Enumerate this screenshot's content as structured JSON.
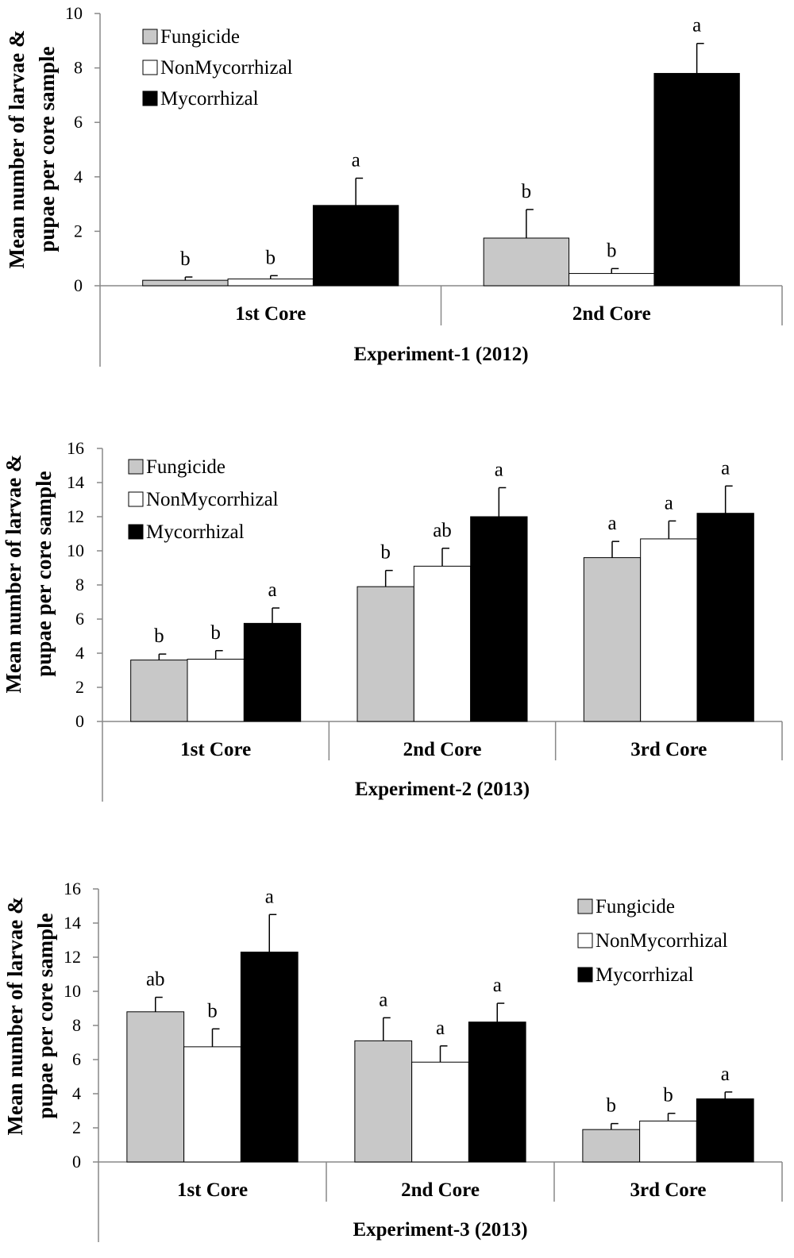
{
  "chart_data": [
    {
      "type": "bar",
      "title": "Experiment-1 (2012)",
      "ylabel_lines": [
        "Mean number of larvae &",
        "pupae per core sample"
      ],
      "categories": [
        "1st Core",
        "2nd Core"
      ],
      "ylim": [
        0,
        10
      ],
      "yticks": [
        "0",
        "2",
        "4",
        "6",
        "8",
        "10"
      ],
      "legend_position": "top-left",
      "series": [
        {
          "name": "Fungicide",
          "color": "#c8c8c8",
          "values": [
            0.2,
            1.75
          ],
          "errors": [
            0.12,
            1.05
          ],
          "letters": [
            "b",
            "b"
          ]
        },
        {
          "name": "NonMycorrhizal",
          "color": "#ffffff",
          "values": [
            0.25,
            0.45
          ],
          "errors": [
            0.12,
            0.18
          ],
          "letters": [
            "b",
            "b"
          ]
        },
        {
          "name": "Mycorrhizal",
          "color": "#000000",
          "values": [
            2.95,
            7.8
          ],
          "errors": [
            1.0,
            1.1
          ],
          "letters": [
            "a",
            "a"
          ]
        }
      ]
    },
    {
      "type": "bar",
      "title": "Experiment-2 (2013)",
      "ylabel_lines": [
        "Mean number of larvae &",
        "pupae per core sample"
      ],
      "categories": [
        "1st Core",
        "2nd Core",
        "3rd Core"
      ],
      "ylim": [
        0,
        16
      ],
      "yticks": [
        "0",
        "2",
        "4",
        "6",
        "8",
        "10",
        "12",
        "14",
        "16"
      ],
      "legend_position": "top-left",
      "series": [
        {
          "name": "Fungicide",
          "color": "#c8c8c8",
          "values": [
            3.6,
            7.9,
            9.6
          ],
          "errors": [
            0.35,
            0.95,
            0.95
          ],
          "letters": [
            "b",
            "b",
            "a"
          ]
        },
        {
          "name": "NonMycorrhizal",
          "color": "#ffffff",
          "values": [
            3.65,
            9.1,
            10.7
          ],
          "errors": [
            0.5,
            1.05,
            1.05
          ],
          "letters": [
            "b",
            "ab",
            "a"
          ]
        },
        {
          "name": "Mycorrhizal",
          "color": "#000000",
          "values": [
            5.75,
            12.0,
            12.2
          ],
          "errors": [
            0.9,
            1.7,
            1.6
          ],
          "letters": [
            "a",
            "a",
            "a"
          ]
        }
      ]
    },
    {
      "type": "bar",
      "title": "Experiment-3 (2013)",
      "ylabel_lines": [
        "Mean number of larvae &",
        "pupae per core sample"
      ],
      "categories": [
        "1st Core",
        "2nd Core",
        "3rd Core"
      ],
      "ylim": [
        0,
        16
      ],
      "yticks": [
        "0",
        "2",
        "4",
        "6",
        "8",
        "10",
        "12",
        "14",
        "16"
      ],
      "legend_position": "top-right",
      "series": [
        {
          "name": "Fungicide",
          "color": "#c8c8c8",
          "values": [
            8.8,
            7.1,
            1.9
          ],
          "errors": [
            0.85,
            1.35,
            0.35
          ],
          "letters": [
            "ab",
            "a",
            "b"
          ]
        },
        {
          "name": "NonMycorrhizal",
          "color": "#ffffff",
          "values": [
            6.75,
            5.85,
            2.4
          ],
          "errors": [
            1.05,
            0.95,
            0.45
          ],
          "letters": [
            "b",
            "a",
            "b"
          ]
        },
        {
          "name": "Mycorrhizal",
          "color": "#000000",
          "values": [
            12.3,
            8.2,
            3.7
          ],
          "errors": [
            2.2,
            1.1,
            0.4
          ],
          "letters": [
            "a",
            "a",
            "a"
          ]
        }
      ]
    }
  ]
}
